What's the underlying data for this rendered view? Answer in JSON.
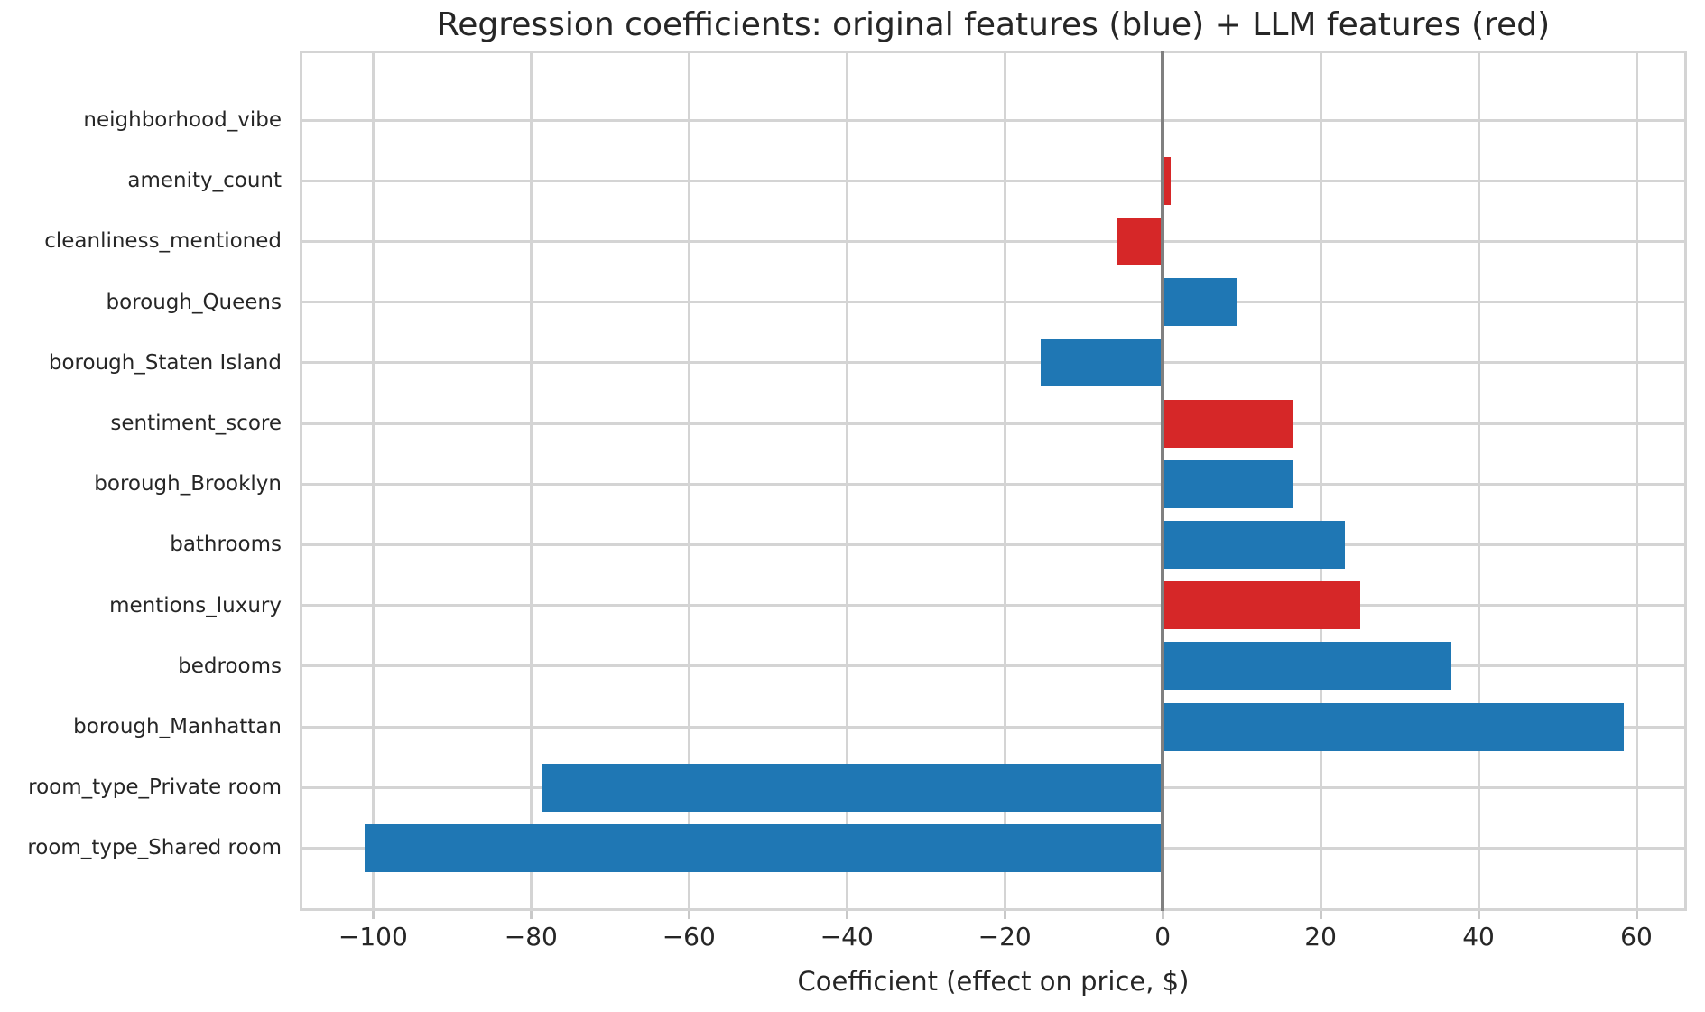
{
  "chart_data": {
    "type": "bar",
    "orientation": "horizontal",
    "title": "Regression coefficients: original features (blue) + LLM features (red)",
    "xlabel": "Coefficient (effect on price, $)",
    "ylabel": "",
    "categories": [
      "neighborhood_vibe",
      "amenity_count",
      "cleanliness_mentioned",
      "borough_Queens",
      "borough_Staten Island",
      "sentiment_score",
      "borough_Brooklyn",
      "bathrooms",
      "mentions_luxury",
      "bedrooms",
      "borough_Manhattan",
      "room_type_Private room",
      "room_type_Shared room"
    ],
    "values": [
      0.0,
      1.0,
      -5.9,
      9.4,
      -15.5,
      16.4,
      16.6,
      23.1,
      25.0,
      36.6,
      58.4,
      -78.5,
      -101.1
    ],
    "feature_type": [
      "llm",
      "llm",
      "llm",
      "original",
      "original",
      "llm",
      "original",
      "original",
      "llm",
      "original",
      "original",
      "original",
      "original"
    ],
    "colors": {
      "original": "#1f77b4",
      "llm": "#d62728",
      "zero_line": "#808080",
      "grid": "#d4d4d4",
      "text": "#262626",
      "background": "#ffffff"
    },
    "xlim": [
      -109.3,
      66.4
    ],
    "xticks": [
      -100,
      -80,
      -60,
      -40,
      -20,
      0,
      20,
      40,
      60
    ],
    "xtick_labels": [
      "−100",
      "−80",
      "−60",
      "−40",
      "−20",
      "0",
      "20",
      "40",
      "60"
    ],
    "grid": true,
    "legend": "none"
  }
}
